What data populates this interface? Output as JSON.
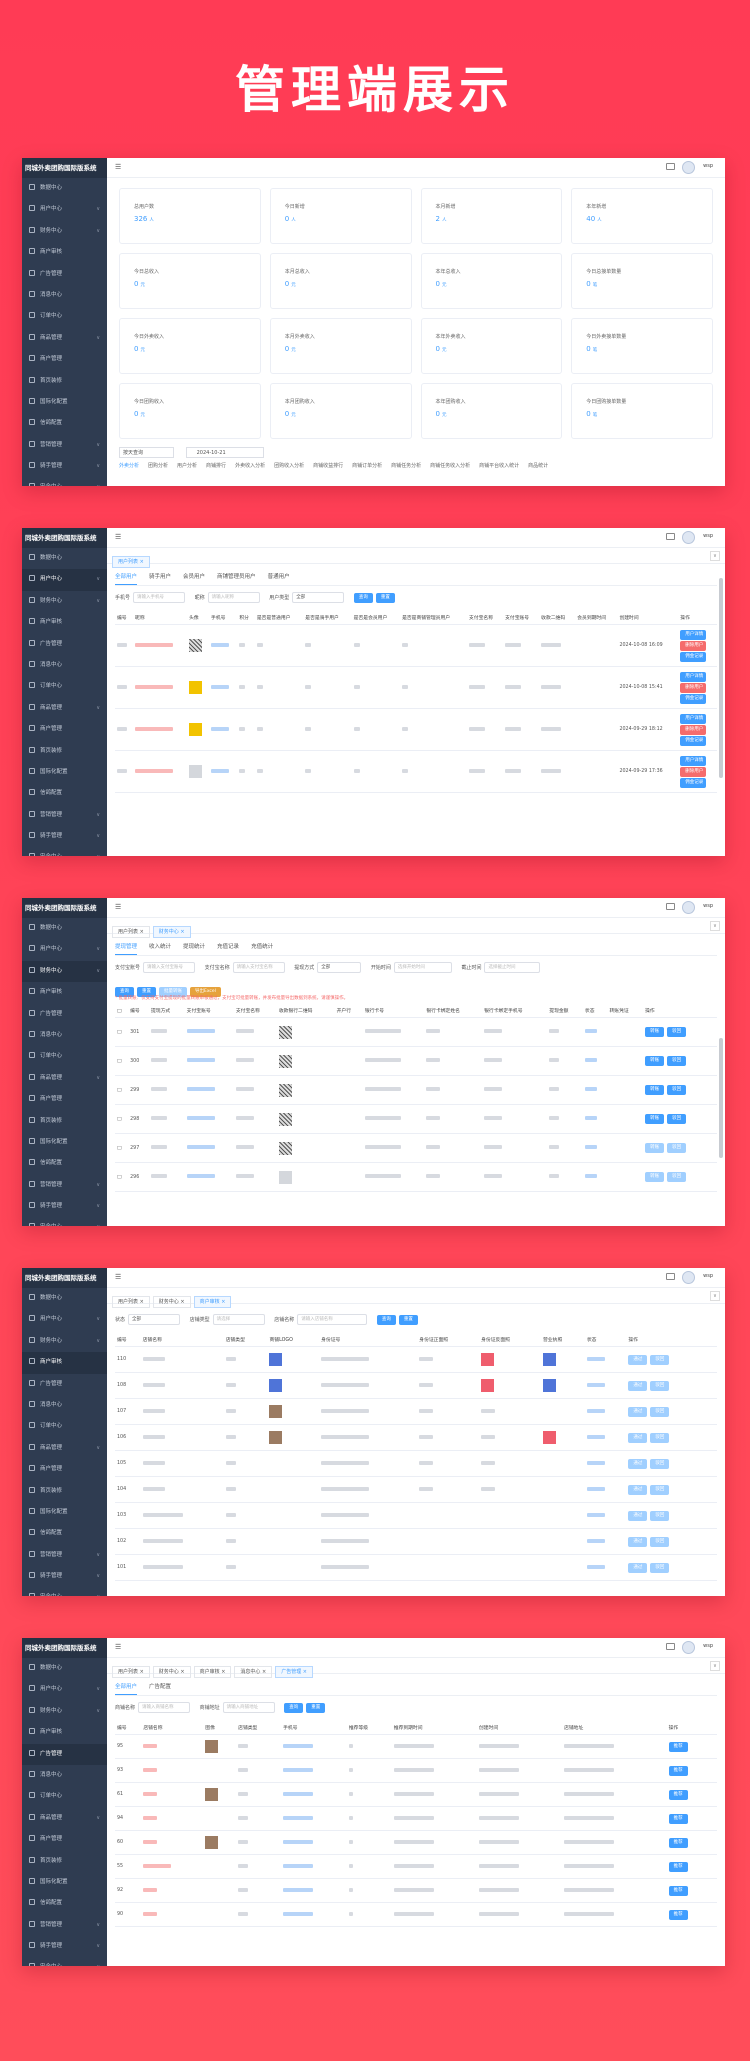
{
  "headline": "管理端展示",
  "app": {
    "title": "同城外卖团购国际版系统",
    "username": "wsp"
  },
  "sidebar": {
    "items": [
      {
        "label": "数据中心"
      },
      {
        "label": "用户中心"
      },
      {
        "label": "财务中心"
      },
      {
        "label": "商户审核"
      },
      {
        "label": "广告管理"
      },
      {
        "label": "消息中心"
      },
      {
        "label": "订单中心"
      },
      {
        "label": "商品管理"
      },
      {
        "label": "商户管理"
      },
      {
        "label": "首页装修"
      },
      {
        "label": "国际化配置"
      },
      {
        "label": "信鸽配置"
      },
      {
        "label": "营销管理"
      },
      {
        "label": "骑手管理"
      },
      {
        "label": "安全中心"
      }
    ]
  },
  "screen1": {
    "stats": [
      {
        "label": "总用户数",
        "value": "326",
        "unit": "人"
      },
      {
        "label": "今日新增",
        "value": "0",
        "unit": "人"
      },
      {
        "label": "本月新增",
        "value": "2",
        "unit": "人"
      },
      {
        "label": "本年新增",
        "value": "40",
        "unit": "人"
      },
      {
        "label": "今日总收入",
        "value": "0",
        "unit": "元"
      },
      {
        "label": "本月总收入",
        "value": "0",
        "unit": "元"
      },
      {
        "label": "本年总收入",
        "value": "0",
        "unit": "元"
      },
      {
        "label": "今日总接单数量",
        "value": "0",
        "unit": "笔"
      },
      {
        "label": "今日外卖收入",
        "value": "0",
        "unit": "元"
      },
      {
        "label": "本月外卖收入",
        "value": "0",
        "unit": "元"
      },
      {
        "label": "本年外卖收入",
        "value": "0",
        "unit": "元"
      },
      {
        "label": "今日外卖接单数量",
        "value": "0",
        "unit": "笔"
      },
      {
        "label": "今日团购收入",
        "value": "0",
        "unit": "元"
      },
      {
        "label": "本月团购收入",
        "value": "0",
        "unit": "元"
      },
      {
        "label": "本年团购收入",
        "value": "0",
        "unit": "元"
      },
      {
        "label": "今日团购接单数量",
        "value": "0",
        "unit": "笔"
      }
    ],
    "period_select": "按天查询",
    "date_value": "2024-10-21",
    "bottom_tabs": [
      "外卖分析",
      "团购分析",
      "用户分析",
      "商铺排行",
      "外卖收入分析",
      "团购收入分析",
      "商铺收益排行",
      "商铺订单分析",
      "商铺任务分析",
      "商铺任务收入分析",
      "商铺平台收入统计",
      "商品统计"
    ]
  },
  "screen2": {
    "tabs": [
      "用户列表"
    ],
    "subtabs": [
      "全部用户",
      "骑手用户",
      "会员用户",
      "商铺管理员用户",
      "普通用户"
    ],
    "filters": [
      {
        "label": "手机号",
        "placeholder": "请输入手机号"
      },
      {
        "label": "昵称",
        "placeholder": "请输入昵称"
      }
    ],
    "type_label": "用户类型",
    "type_value": "全部",
    "search_btn": "查询",
    "reset_btn": "重置",
    "columns": [
      "编号",
      "昵称",
      "头像",
      "手机号",
      "积分",
      "是否是普通用户",
      "是否是骑手用户",
      "是否是会员用户",
      "是否是商铺管理员用户",
      "支付宝名称",
      "支付宝账号",
      "收款二维码",
      "会员到期时间",
      "创建时间",
      "操作"
    ],
    "rows": [
      {
        "time": "2024-10-08 16:09"
      },
      {
        "time": "2024-10-08 15:41"
      },
      {
        "time": "2024-09-29 18:12"
      },
      {
        "time": "2024-09-29 17:36"
      }
    ],
    "row_actions": [
      "用户详情",
      "删除用户",
      "佣金记录"
    ]
  },
  "screen3": {
    "tabs": [
      "用户列表",
      "财务中心"
    ],
    "subtabs": [
      "提现管理",
      "收入统计",
      "提现统计",
      "充值记录",
      "充值统计"
    ],
    "filters": [
      {
        "label": "支付宝账号",
        "placeholder": "请输入支付宝账号"
      },
      {
        "label": "支付宝名称",
        "placeholder": "请输入支付宝名称"
      }
    ],
    "method_label": "提现方式",
    "method_value": "全部",
    "start_label": "开始时间",
    "start_placeholder": "选择开始时间",
    "end_label": "截止时间",
    "end_placeholder": "选择截止时间",
    "buttons": [
      "查询",
      "重置",
      "批量转账",
      "导出Excel"
    ],
    "notice": "* 批量转账：仅支持支付宝提现的批量转账审核通过，支付宝可批量转账，并发布批量导出数据到系统，请谨慎操作。",
    "columns": [
      "编号",
      "提现方式",
      "支付宝账号",
      "支付宝名称",
      "收款银行二维码",
      "开户行",
      "银行卡号",
      "银行卡绑定姓名",
      "银行卡绑定手机号",
      "提现金额",
      "状态",
      "转账凭证",
      "操作"
    ],
    "rows": [
      {
        "id": "301"
      },
      {
        "id": "300"
      },
      {
        "id": "299"
      },
      {
        "id": "298"
      },
      {
        "id": "297"
      },
      {
        "id": "296"
      }
    ],
    "row_actions": [
      "转账",
      "驳回"
    ]
  },
  "screen4": {
    "tabs": [
      "用户列表",
      "财务中心",
      "商户审核"
    ],
    "status_label": "状态",
    "status_value": "全部",
    "type_label": "店铺类型",
    "type_placeholder": "请选择",
    "name_label": "店铺名称",
    "name_placeholder": "请输入店铺名称",
    "search_btn": "查询",
    "reset_btn": "重置",
    "columns": [
      "编号",
      "店铺名称",
      "店铺类型",
      "商铺LOGO",
      "身份证号",
      "身份证正面照",
      "身份证反面照",
      "营业执照",
      "状态",
      "操作"
    ],
    "rows": [
      {
        "id": "110"
      },
      {
        "id": "108"
      },
      {
        "id": "107"
      },
      {
        "id": "106"
      },
      {
        "id": "105"
      },
      {
        "id": "104"
      },
      {
        "id": "103"
      },
      {
        "id": "102"
      },
      {
        "id": "101"
      }
    ],
    "row_actions": [
      "通过",
      "驳回"
    ]
  },
  "screen5": {
    "tabs": [
      "用户列表",
      "财务中心",
      "商户审核",
      "消息中心",
      "广告管理"
    ],
    "subtabs": [
      "全部用户",
      "广告配置"
    ],
    "filters": [
      {
        "label": "商铺名称",
        "placeholder": "请输入商铺名称"
      },
      {
        "label": "商铺地址",
        "placeholder": "请输入商铺地址"
      }
    ],
    "search_btn": "查询",
    "reset_btn": "重置",
    "columns": [
      "编号",
      "店铺名称",
      "图像",
      "店铺类型",
      "手机号",
      "推荐等级",
      "推荐到期时间",
      "创建时间",
      "店铺地址",
      "操作"
    ],
    "rows": [
      {
        "id": "95"
      },
      {
        "id": "93"
      },
      {
        "id": "61"
      },
      {
        "id": "94"
      },
      {
        "id": "60"
      },
      {
        "id": "55"
      },
      {
        "id": "92"
      },
      {
        "id": "90"
      }
    ],
    "row_action": "推荐"
  },
  "colors": {
    "background": "#ff3b55",
    "sidebar": "#2f3c51",
    "accent": "#409eff",
    "danger": "#f56c6c"
  }
}
